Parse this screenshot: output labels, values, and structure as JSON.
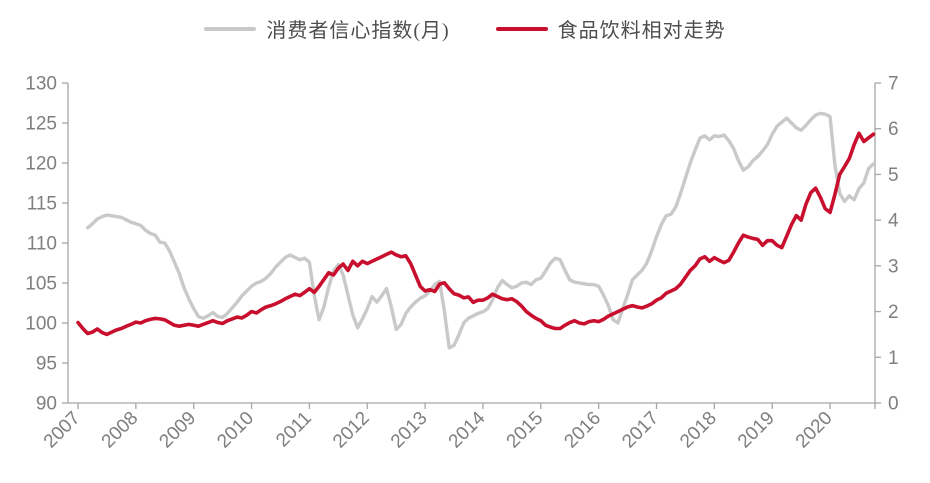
{
  "legend": {
    "items": [
      {
        "label": "消费者信心指数(月)",
        "color": "#c9c9c9"
      },
      {
        "label": "食品饮料相对走势",
        "color": "#c8102e"
      }
    ]
  },
  "axes_colors": {
    "axis_line": "#a6a6a6",
    "tick_label": "#7f7f7f"
  },
  "chart_data": {
    "type": "line",
    "x_unit": "month",
    "x_start": "2007-01",
    "x_end": "2020-10",
    "x_tick_labels": [
      "2007",
      "2008",
      "2009",
      "2010",
      "2011",
      "2012",
      "2013",
      "2014",
      "2015",
      "2016",
      "2017",
      "2018",
      "2019",
      "2020"
    ],
    "left_axis": {
      "min": 90,
      "max": 130,
      "ticks": [
        90,
        95,
        100,
        105,
        110,
        115,
        120,
        125,
        130
      ]
    },
    "right_axis": {
      "min": 0,
      "max": 7,
      "ticks": [
        0,
        1,
        2,
        3,
        4,
        5,
        6,
        7
      ]
    },
    "grid": "off",
    "legend_position": "top",
    "series": [
      {
        "name": "消费者信心指数(月)",
        "axis": "left",
        "color": "#c9c9c9",
        "stroke_width": 3.4,
        "values": [
          null,
          null,
          111.9,
          112.4,
          113.0,
          113.3,
          113.5,
          113.4,
          113.3,
          113.2,
          112.9,
          112.6,
          112.4,
          112.2,
          111.6,
          111.2,
          111.0,
          110.1,
          110.0,
          109.0,
          107.6,
          106.2,
          104.4,
          103.0,
          101.8,
          100.8,
          100.6,
          100.9,
          101.3,
          100.8,
          100.7,
          101.2,
          101.9,
          102.6,
          103.4,
          104.0,
          104.6,
          105.0,
          105.2,
          105.6,
          106.2,
          107.0,
          107.6,
          108.2,
          108.5,
          108.2,
          107.9,
          108.1,
          107.6,
          103.5,
          100.4,
          102.0,
          104.5,
          106.5,
          107.3,
          106.0,
          103.5,
          101.0,
          99.4,
          100.5,
          101.8,
          103.3,
          102.6,
          103.4,
          104.3,
          102.0,
          99.2,
          99.8,
          101.2,
          102.0,
          102.6,
          103.1,
          103.4,
          104.0,
          104.8,
          105.2,
          101.5,
          96.9,
          97.2,
          98.5,
          100.0,
          100.6,
          100.9,
          101.2,
          101.4,
          101.8,
          102.9,
          104.4,
          105.3,
          104.8,
          104.4,
          104.6,
          105.0,
          105.1,
          104.8,
          105.4,
          105.6,
          106.5,
          107.5,
          108.1,
          107.9,
          106.6,
          105.4,
          105.1,
          105.0,
          104.9,
          104.8,
          104.8,
          104.6,
          103.5,
          102.2,
          100.4,
          100.0,
          101.8,
          103.5,
          105.4,
          106.0,
          106.6,
          107.5,
          109.0,
          110.8,
          112.3,
          113.4,
          113.6,
          114.5,
          116.2,
          118.1,
          120.0,
          121.6,
          123.1,
          123.4,
          122.9,
          123.4,
          123.3,
          123.5,
          122.8,
          121.8,
          120.3,
          119.1,
          119.5,
          120.3,
          120.8,
          121.5,
          122.3,
          123.6,
          124.6,
          125.1,
          125.6,
          125.0,
          124.4,
          124.1,
          124.7,
          125.4,
          126.0,
          126.2,
          126.1,
          125.8,
          119.8,
          116.2,
          115.2,
          115.9,
          115.4,
          116.8,
          117.5,
          119.3,
          119.9
        ]
      },
      {
        "name": "食品饮料相对走势",
        "axis": "right",
        "color": "#c8102e",
        "stroke_width": 3.6,
        "values": [
          1.76,
          1.63,
          1.52,
          1.55,
          1.62,
          1.54,
          1.5,
          1.55,
          1.6,
          1.63,
          1.68,
          1.72,
          1.77,
          1.75,
          1.8,
          1.83,
          1.85,
          1.84,
          1.82,
          1.76,
          1.7,
          1.68,
          1.7,
          1.72,
          1.7,
          1.68,
          1.72,
          1.76,
          1.8,
          1.76,
          1.74,
          1.8,
          1.84,
          1.88,
          1.86,
          1.92,
          2.0,
          1.97,
          2.04,
          2.1,
          2.13,
          2.17,
          2.22,
          2.28,
          2.33,
          2.38,
          2.35,
          2.42,
          2.5,
          2.42,
          2.55,
          2.7,
          2.85,
          2.8,
          2.95,
          3.04,
          2.9,
          3.1,
          3.0,
          3.1,
          3.05,
          3.1,
          3.15,
          3.2,
          3.25,
          3.3,
          3.24,
          3.2,
          3.22,
          3.05,
          2.8,
          2.55,
          2.45,
          2.48,
          2.44,
          2.6,
          2.63,
          2.5,
          2.39,
          2.36,
          2.3,
          2.32,
          2.2,
          2.25,
          2.25,
          2.3,
          2.38,
          2.33,
          2.28,
          2.26,
          2.28,
          2.22,
          2.12,
          2.0,
          1.92,
          1.85,
          1.8,
          1.7,
          1.66,
          1.63,
          1.63,
          1.7,
          1.76,
          1.8,
          1.75,
          1.73,
          1.78,
          1.8,
          1.78,
          1.83,
          1.9,
          1.95,
          2.0,
          2.05,
          2.1,
          2.13,
          2.1,
          2.08,
          2.12,
          2.17,
          2.25,
          2.3,
          2.4,
          2.45,
          2.5,
          2.6,
          2.75,
          2.9,
          3.0,
          3.15,
          3.2,
          3.1,
          3.18,
          3.12,
          3.07,
          3.12,
          3.3,
          3.5,
          3.67,
          3.63,
          3.6,
          3.58,
          3.45,
          3.55,
          3.55,
          3.45,
          3.4,
          3.65,
          3.9,
          4.1,
          4.0,
          4.35,
          4.6,
          4.7,
          4.5,
          4.25,
          4.17,
          4.56,
          5.0,
          5.17,
          5.35,
          5.65,
          5.9,
          5.72,
          5.8,
          5.88
        ]
      }
    ]
  }
}
